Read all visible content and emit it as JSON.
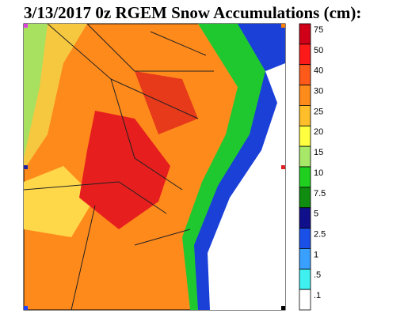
{
  "header": {
    "title": "3/13/2017 0z RGEM Snow Accumulations (cm):"
  },
  "legend": [
    {
      "label": "75",
      "color": "#d00018"
    },
    {
      "label": "50",
      "color": "#ff1a1a"
    },
    {
      "label": "40",
      "color": "#ff5a1a"
    },
    {
      "label": "30",
      "color": "#ff8c1a"
    },
    {
      "label": "25",
      "color": "#ffbe2a"
    },
    {
      "label": "20",
      "color": "#ffff40"
    },
    {
      "label": "15",
      "color": "#a8e868"
    },
    {
      "label": "10",
      "color": "#20d020"
    },
    {
      "label": "7.5",
      "color": "#108c10"
    },
    {
      "label": "5",
      "color": "#10108c"
    },
    {
      "label": "2.5",
      "color": "#1a50e8"
    },
    {
      "label": "1",
      "color": "#3aa0ff"
    },
    {
      "label": ".5",
      "color": "#40f0f0"
    },
    {
      "label": ".1",
      "color": "#ffffff"
    }
  ]
}
